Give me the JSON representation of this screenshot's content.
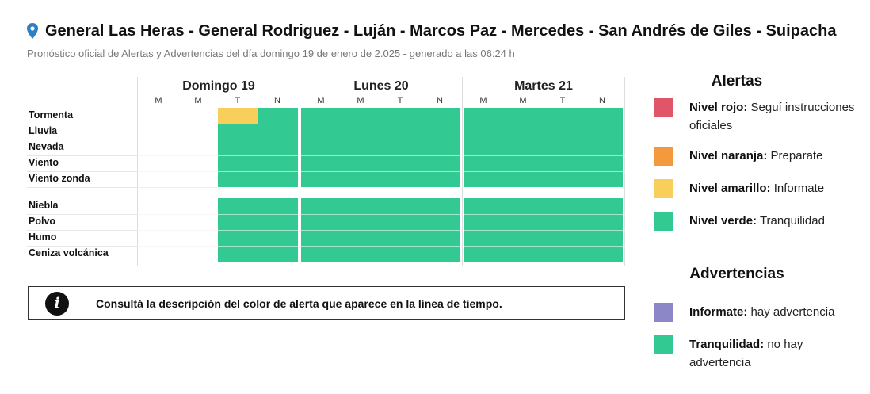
{
  "header": {
    "title": "General Las Heras - General Rodriguez - Luján - Marcos Paz - Mercedes - San Andrés de Giles - Suipacha",
    "subtitle": "Pronóstico oficial de Alertas y Advertencias del día domingo 19 de enero de 2.025 - generado a las 06:24 h",
    "icon": "location-pin-icon"
  },
  "colors": {
    "rojo": "#e05567",
    "naranja": "#f39a3f",
    "amarillo": "#f7cf5a",
    "verde": "#33c993",
    "violeta": "#8c87c6",
    "empty": "#ffffff"
  },
  "timeline": {
    "days": [
      {
        "label": "Domingo 19",
        "slots": [
          "M",
          "M",
          "T",
          "N"
        ]
      },
      {
        "label": "Lunes 20",
        "slots": [
          "M",
          "M",
          "T",
          "N"
        ]
      },
      {
        "label": "Martes 21",
        "slots": [
          "M",
          "M",
          "T",
          "N"
        ]
      }
    ],
    "alert_rows": [
      {
        "label": "Tormenta",
        "levels": [
          "none",
          "none",
          "amarillo",
          "verde",
          "verde",
          "verde",
          "verde",
          "verde",
          "verde",
          "verde",
          "verde",
          "verde"
        ]
      },
      {
        "label": "Lluvia",
        "levels": [
          "none",
          "none",
          "verde",
          "verde",
          "verde",
          "verde",
          "verde",
          "verde",
          "verde",
          "verde",
          "verde",
          "verde"
        ]
      },
      {
        "label": "Nevada",
        "levels": [
          "none",
          "none",
          "verde",
          "verde",
          "verde",
          "verde",
          "verde",
          "verde",
          "verde",
          "verde",
          "verde",
          "verde"
        ]
      },
      {
        "label": "Viento",
        "levels": [
          "none",
          "none",
          "verde",
          "verde",
          "verde",
          "verde",
          "verde",
          "verde",
          "verde",
          "verde",
          "verde",
          "verde"
        ]
      },
      {
        "label": "Viento zonda",
        "levels": [
          "none",
          "none",
          "verde",
          "verde",
          "verde",
          "verde",
          "verde",
          "verde",
          "verde",
          "verde",
          "verde",
          "verde"
        ]
      }
    ],
    "warning_rows": [
      {
        "label": "Niebla",
        "levels": [
          "none",
          "none",
          "verde",
          "verde",
          "verde",
          "verde",
          "verde",
          "verde",
          "verde",
          "verde",
          "verde",
          "verde"
        ]
      },
      {
        "label": "Polvo",
        "levels": [
          "none",
          "none",
          "verde",
          "verde",
          "verde",
          "verde",
          "verde",
          "verde",
          "verde",
          "verde",
          "verde",
          "verde"
        ]
      },
      {
        "label": "Humo",
        "levels": [
          "none",
          "none",
          "verde",
          "verde",
          "verde",
          "verde",
          "verde",
          "verde",
          "verde",
          "verde",
          "verde",
          "verde"
        ]
      },
      {
        "label": "Ceniza volcánica",
        "levels": [
          "none",
          "none",
          "verde",
          "verde",
          "verde",
          "verde",
          "verde",
          "verde",
          "verde",
          "verde",
          "verde",
          "verde"
        ]
      }
    ]
  },
  "info": {
    "icon": "info-icon",
    "icon_glyph": "i",
    "text": "Consultá la descripción del color de alerta que aparece en la línea de tiempo."
  },
  "legend": {
    "alerts_title": "Alertas",
    "alerts": [
      {
        "color": "rojo",
        "name": "Nivel rojo:",
        "desc": " Seguí instrucciones oficiales"
      },
      {
        "color": "naranja",
        "name": "Nivel naranja:",
        "desc": " Preparate"
      },
      {
        "color": "amarillo",
        "name": "Nivel amarillo:",
        "desc": " Informate"
      },
      {
        "color": "verde",
        "name": "Nivel verde:",
        "desc": " Tranquilidad"
      }
    ],
    "warnings_title": "Advertencias",
    "warnings": [
      {
        "color": "violeta",
        "name": "Informate:",
        "desc": " hay advertencia"
      },
      {
        "color": "verde",
        "name": "Tranquilidad:",
        "desc": " no hay advertencia"
      }
    ]
  }
}
